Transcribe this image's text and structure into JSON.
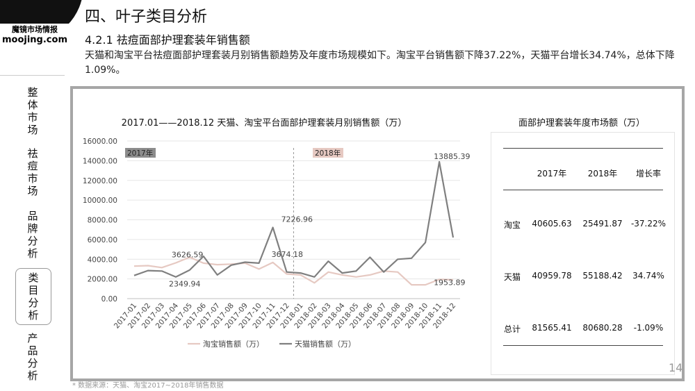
{
  "brand": {
    "name_cn": "魔镜市场情报",
    "name_en": "moojing.com"
  },
  "nav": [
    {
      "label": "整体市场",
      "active": false
    },
    {
      "label": "祛痘市场",
      "active": false
    },
    {
      "label": "品牌分析",
      "active": false
    },
    {
      "label": "类目分析",
      "active": true
    },
    {
      "label": "产品分析",
      "active": false
    }
  ],
  "title": "四、叶子类目分析",
  "subtitle": "4.2.1 祛痘面部护理套装年销售额",
  "description": "天猫和淘宝平台祛痘面部护理套装月别销售额趋势及年度市场规模如下。淘宝平台销售额下降37.22%，天猫平台增长34.74%，总体下降1.09%。",
  "chart_data": {
    "type": "line",
    "title": "2017.01——2018.12 天猫、淘宝平台面部护理套装月别销售额（万）",
    "categories": [
      "2017-01",
      "2017-02",
      "2017-03",
      "2017-04",
      "2017-05",
      "2017-06",
      "2017-07",
      "2017-08",
      "2017-09",
      "2017-10",
      "2017-11",
      "2017-12",
      "2018-01",
      "2018-02",
      "2018-03",
      "2018-04",
      "2018-05",
      "2018-06",
      "2018-07",
      "2018-08",
      "2018-09",
      "2018-10",
      "2018-11",
      "2018-12"
    ],
    "ylim": [
      0,
      16000
    ],
    "yticks": [
      "0.00",
      "2000.00",
      "4000.00",
      "6000.00",
      "8000.00",
      "10000.00",
      "12000.00",
      "14000.00",
      "16000.00"
    ],
    "series": [
      {
        "name": "淘宝销售额（万）",
        "color": "#e6c9c2",
        "values": [
          3300,
          3350,
          3150,
          3626.59,
          4200,
          3600,
          3450,
          3500,
          3600,
          3000,
          3674.18,
          2500,
          2400,
          1600,
          2700,
          2400,
          2200,
          2400,
          2800,
          2700,
          1400,
          1400,
          1953.89,
          1900
        ]
      },
      {
        "name": "天猫销售额（万）",
        "color": "#7f7f7f",
        "values": [
          2349.94,
          2850,
          2800,
          2200,
          2900,
          4300,
          2400,
          3400,
          3700,
          3600,
          7226.96,
          2700,
          2600,
          2200,
          3800,
          2600,
          2800,
          4200,
          2700,
          4000,
          4100,
          5700,
          13885.39,
          6200
        ]
      }
    ],
    "legend_position": "bottom",
    "region_labels": [
      {
        "text": "2017年",
        "color": "#8c8c8c"
      },
      {
        "text": "2018年",
        "color": "#e6c9c2"
      }
    ],
    "data_labels": [
      {
        "series": 0,
        "index": 3,
        "text": "3626.59"
      },
      {
        "series": 0,
        "index": 10,
        "text": "3674.18"
      },
      {
        "series": 0,
        "index": 22,
        "text": "1953.89"
      },
      {
        "series": 1,
        "index": 0,
        "text": "2349.94"
      },
      {
        "series": 1,
        "index": 10,
        "text": "7226.96"
      },
      {
        "series": 1,
        "index": 22,
        "text": "13885.39"
      }
    ]
  },
  "market_table": {
    "title": "面部护理套装年度市场额（万）",
    "headers": [
      "",
      "2017年",
      "2018年",
      "增长率"
    ],
    "rows": [
      [
        "淘宝",
        "40605.63",
        "25491.87",
        "-37.22%"
      ],
      [
        "天猫",
        "40959.78",
        "55188.42",
        "34.74%"
      ],
      [
        "总计",
        "81565.41",
        "80680.28",
        "-1.09%"
      ]
    ]
  },
  "page_number": "14",
  "footnote": "* 数据来源：天猫、淘宝2017~2018年销售数据"
}
